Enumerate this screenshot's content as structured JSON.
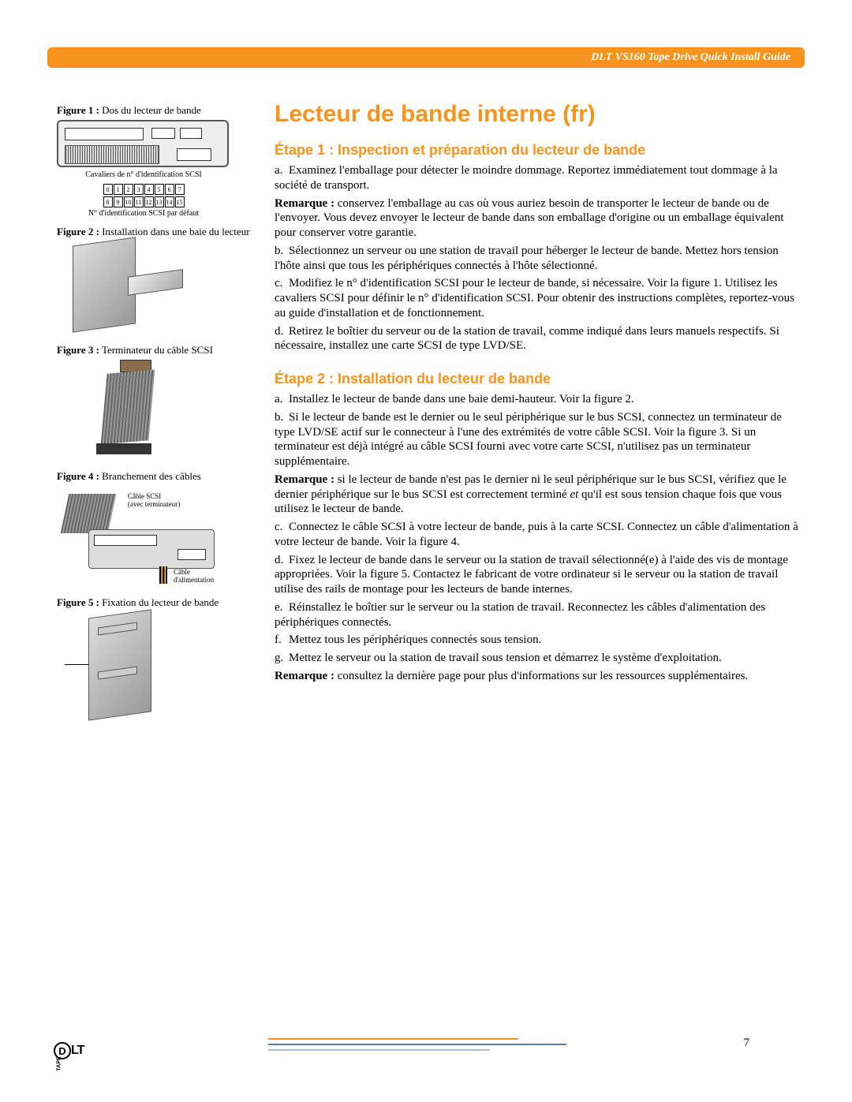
{
  "header": {
    "title": "DLT VS160 Tape Drive Quick Install Guide"
  },
  "page": {
    "title": "Lecteur de bande interne (fr)",
    "number": "7"
  },
  "figures": {
    "f1": {
      "label": "Figure 1 :",
      "caption": "Dos du lecteur de bande",
      "sub1": "Cavaliers de n° d'identification SCSI",
      "sub2": "N° d'identification SCSI par défaut",
      "ids_top": [
        "0",
        "1",
        "2",
        "3",
        "4",
        "5",
        "6",
        "7"
      ],
      "ids_bot": [
        "8",
        "9",
        "10",
        "11",
        "12",
        "13",
        "14",
        "15"
      ]
    },
    "f2": {
      "label": "Figure 2 :",
      "caption": "Installation dans une baie du lecteur"
    },
    "f3": {
      "label": "Figure 3 :",
      "caption": "Terminateur du câble SCSI"
    },
    "f4": {
      "label": "Figure 4 :",
      "caption": "Branchement des câbles",
      "lbl1": "Câble SCSI",
      "lbl1b": "(avec terminateur)",
      "lbl2": "Câble",
      "lbl2b": "d'alimentation"
    },
    "f5": {
      "label": "Figure 5 :",
      "caption": "Fixation du lecteur de bande"
    }
  },
  "step1": {
    "heading": "Étape 1 : Inspection et préparation du lecteur de bande",
    "a": "Examinez l'emballage pour détecter le moindre dommage. Reportez immédiatement tout dommage à la société de transport.",
    "rem1_label": "Remarque :",
    "rem1": "conservez l'emballage au cas où vous auriez besoin de transporter le lecteur de bande ou de l'envoyer. Vous devez envoyer le lecteur de bande dans son emballage d'origine ou un emballage équivalent pour conserver votre garantie.",
    "b": "Sélectionnez un serveur ou une station de travail pour héberger le lecteur de bande. Mettez hors tension l'hôte ainsi que tous les périphériques connectés à l'hôte sélectionné.",
    "c": "Modifiez le n° d'identification SCSI pour le lecteur de bande, si nécessaire. Voir la figure 1. Utilisez les cavaliers SCSI pour définir le n° d'identification SCSI. Pour obtenir des instructions complètes, reportez-vous au guide d'installation et de fonctionnement.",
    "d": "Retirez le boîtier du serveur ou de la station de travail, comme indiqué dans leurs manuels respectifs. Si nécessaire, installez une carte SCSI de type LVD/SE."
  },
  "step2": {
    "heading": "Étape 2 : Installation du lecteur de bande",
    "a": "Installez le lecteur de bande dans une baie demi-hauteur. Voir la figure 2.",
    "b": "Si le lecteur de bande est le dernier ou le seul périphérique sur le bus SCSI, connectez un terminateur de type LVD/SE actif sur le connecteur à l'une des extrémités de votre câble SCSI. Voir la figure 3. Si un terminateur est déjà intégré au câble SCSI fourni avec votre carte SCSI, n'utilisez pas un terminateur supplémentaire.",
    "rem1_label": "Remarque :",
    "rem1_pre": "si le lecteur de bande n'est pas le dernier ni le seul périphérique sur le bus SCSI, vérifiez que le dernier périphérique sur le bus SCSI est correctement terminé ",
    "rem1_em": "et",
    "rem1_post": " qu'il est sous tension chaque fois que vous utilisez le lecteur de bande.",
    "c": "Connectez le câble SCSI à votre lecteur de bande, puis à la carte SCSI. Connectez un câble d'alimentation à votre lecteur de bande. Voir la figure 4.",
    "d": "Fixez le lecteur de bande dans le serveur ou la station de travail sélectionné(e) à l'aide des vis de montage appropriées. Voir la figure 5. Contactez le fabricant de votre ordinateur si le serveur ou la station de travail utilise des rails de montage pour les lecteurs de bande internes.",
    "e": "Réinstallez le boîtier sur le serveur ou la station de travail. Reconnectez les câbles d'alimentation des périphériques connectés.",
    "f": "Mettez tous les périphériques connectés sous tension.",
    "g": "Mettez le serveur ou la station de travail sous tension et démarrez le système d'exploitation.",
    "rem2_label": "Remarque :",
    "rem2": "consultez la dernière page pour plus d'informations sur les ressources supplémentaires."
  },
  "logo": {
    "d": "D",
    "lt": "LT",
    "tape": "TAPE"
  },
  "colors": {
    "accent": "#f7941e",
    "blue": "#5b7ca3",
    "lightblue": "#a9bfd6"
  }
}
